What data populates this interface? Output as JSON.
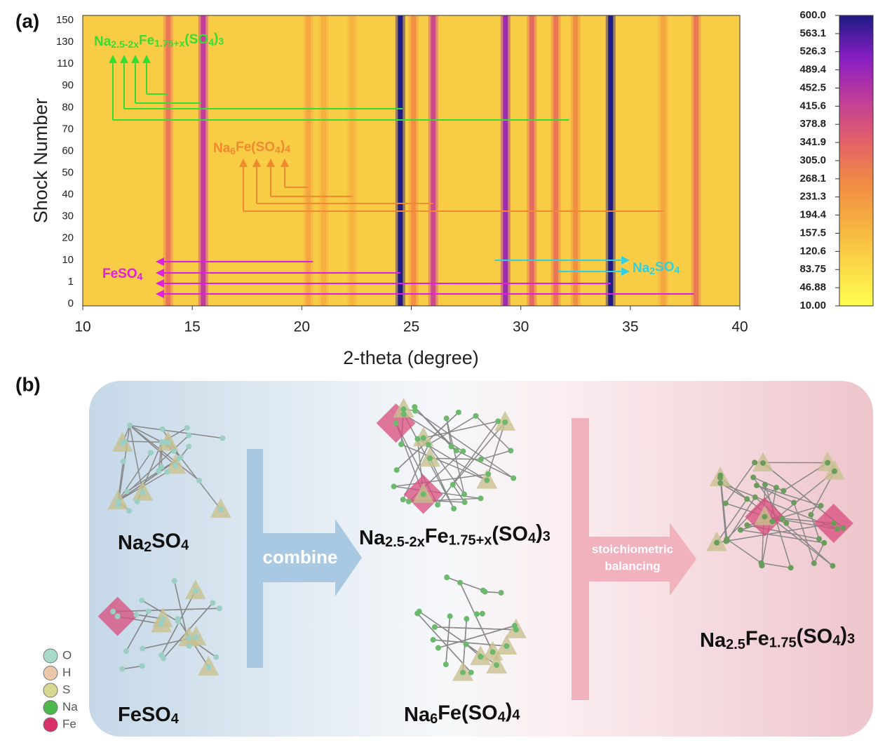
{
  "chart_data": {
    "type": "heatmap",
    "panel_label": "(a)",
    "xlabel": "2-theta (degree)",
    "ylabel": "Shock Number",
    "xlim": [
      10,
      40
    ],
    "xticks": [
      10,
      15,
      20,
      25,
      30,
      35,
      40
    ],
    "y_categories": [
      0,
      1,
      10,
      20,
      30,
      40,
      50,
      60,
      70,
      80,
      90,
      110,
      130,
      150
    ],
    "background_value": 120,
    "peaks": [
      {
        "x": 13.9,
        "value": 300
      },
      {
        "x": 15.5,
        "value": 430
      },
      {
        "x": 20.3,
        "value": 200
      },
      {
        "x": 21.0,
        "value": 180
      },
      {
        "x": 22.3,
        "value": 170
      },
      {
        "x": 24.5,
        "value": 600
      },
      {
        "x": 25.1,
        "value": 250
      },
      {
        "x": 26.0,
        "value": 400
      },
      {
        "x": 29.3,
        "value": 480
      },
      {
        "x": 30.5,
        "value": 330
      },
      {
        "x": 31.6,
        "value": 300
      },
      {
        "x": 32.5,
        "value": 250
      },
      {
        "x": 34.1,
        "value": 600
      },
      {
        "x": 36.5,
        "value": 200
      },
      {
        "x": 38.0,
        "value": 300
      }
    ],
    "clim": [
      10,
      600
    ],
    "colormap": [
      "#ffff50",
      "#fbd848",
      "#f6b040",
      "#f08a44",
      "#e2606a",
      "#c03c9a",
      "#861ec2",
      "#1e1a86"
    ],
    "cticks": [
      {
        "value": 600,
        "label": "600.0"
      },
      563.1,
      {
        "value": 526.3,
        "label": "526.3"
      },
      {
        "value": 489.4,
        "label": "489.4"
      },
      {
        "value": 452.5,
        "label": "452.5"
      },
      {
        "value": 415.6,
        "label": "415.6"
      },
      {
        "value": 378.8,
        "label": "378.8"
      },
      {
        "value": 341.9,
        "label": "341.9"
      },
      {
        "value": 305,
        "label": "305.0"
      },
      {
        "value": 268.1,
        "label": "268.1"
      },
      {
        "value": 231.3,
        "label": "231.3"
      },
      {
        "value": 194.4,
        "label": "194.4"
      },
      {
        "value": 157.5,
        "label": "157.5"
      },
      {
        "value": 120.6,
        "label": "120.6"
      },
      83.75,
      46.88,
      {
        "value": 10,
        "label": "10.00"
      }
    ],
    "annotations": [
      {
        "label": [
          "Na",
          "2.5-2x",
          "Fe",
          "1.75+x",
          "(SO",
          "4",
          ")",
          "3"
        ],
        "color": "#33dd33",
        "peaks": [
          32.2,
          24.6,
          15.4,
          13.9
        ]
      },
      {
        "label": [
          "Na",
          "6",
          "Fe(SO",
          "4",
          ")",
          "4"
        ],
        "color": "#f08a30",
        "peaks": [
          36.5,
          26.0,
          22.3,
          20.3
        ]
      },
      {
        "label": [
          "FeSO",
          "4"
        ],
        "color": "#e020e0",
        "peaks": [
          20.5,
          24.5,
          34.1,
          37.9
        ]
      },
      {
        "label": [
          "Na",
          "2",
          "SO",
          "4"
        ],
        "color": "#30d0e0",
        "peaks": [
          28.8,
          31.7
        ]
      }
    ]
  },
  "panel_b": {
    "label": "(b)",
    "reactants": [
      [
        "Na",
        "2",
        "SO",
        "4"
      ],
      [
        "FeSO",
        "4"
      ]
    ],
    "step1": "combine",
    "intermediates": [
      [
        "Na",
        "2.5-2x",
        "Fe",
        "1.75+x",
        "(SO",
        "4",
        ")",
        "3"
      ],
      [
        "Na",
        "6",
        "Fe(SO",
        "4",
        ")",
        "4"
      ]
    ],
    "step2": [
      "stoichiometric",
      "balancing"
    ],
    "product": [
      "Na",
      "2.5",
      "Fe",
      "1.75",
      "(SO",
      "4",
      ")",
      "3"
    ],
    "legend": [
      {
        "name": "O",
        "color": "#a8dcc8"
      },
      {
        "name": "H",
        "color": "#ecc8a8"
      },
      {
        "name": "S",
        "color": "#d8d890"
      },
      {
        "name": "Na",
        "color": "#4cb84c"
      },
      {
        "name": "Fe",
        "color": "#d8306a"
      }
    ]
  }
}
